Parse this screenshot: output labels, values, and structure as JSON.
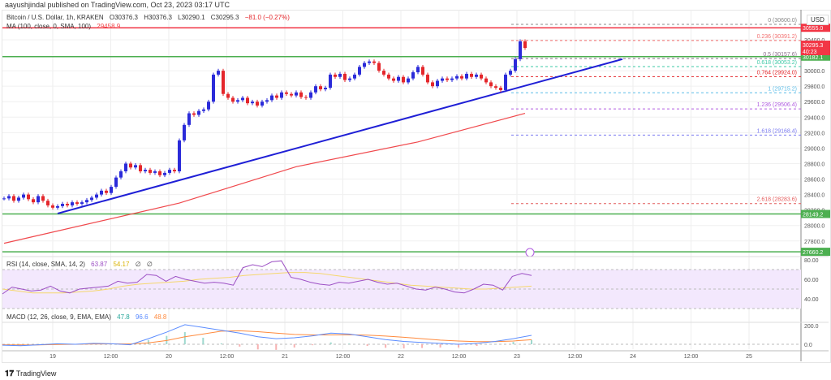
{
  "header": {
    "published": "aayushjindal published on TradingView.com, Oct 23, 2023 03:17 UTC"
  },
  "legend": {
    "symbol": "Bitcoin / U.S. Dollar, 1h, KRAKEN",
    "o": "O30376.3",
    "h": "H30376.3",
    "l": "L30290.1",
    "c": "C30295.3",
    "chg": "−81.0 (−0.27%)",
    "ma": "MA (100, close, 0, SMA, 100)",
    "ma_val": "29458.9"
  },
  "rsi_legend": {
    "label": "RSI (14, close, SMA, 14, 2)",
    "v1": "63.87",
    "v2": "54.17",
    "v3": "∅",
    "v4": "∅"
  },
  "macd_legend": {
    "label": "MACD (12, 26, close, 9, EMA, EMA)",
    "v1": "47.8",
    "v2": "96.6",
    "v3": "48.8"
  },
  "currency": "USD",
  "footer": {
    "brand": "TradingView"
  },
  "colors": {
    "up": "#2b2bd9",
    "down": "#e4262b",
    "ma": "#f0494d",
    "trend": "#1f1fd6",
    "support": "#4caf50",
    "resistance": "#f23645",
    "rsi": "#9c4fc4",
    "rsi_ma": "#f5d76e",
    "macd": "#5b8cff",
    "signal": "#ff8a3d"
  },
  "chart_data": [
    {
      "type": "candlestick",
      "title": "Bitcoin / U.S. Dollar, 1h, KRAKEN",
      "interval": "1h",
      "x_ticks": [
        "19",
        "12:00",
        "20",
        "12:00",
        "21",
        "12:00",
        "22",
        "12:00",
        "23",
        "12:00",
        "24",
        "12:00",
        "25"
      ],
      "y_ticks": [
        "30400.0",
        "30000.0",
        "29800.0",
        "29600.0",
        "29400.0",
        "29200.0",
        "29000.0",
        "28800.0",
        "28600.0",
        "28400.0",
        "28200.0",
        "28000.0",
        "27800.0"
      ],
      "ylim": [
        27600,
        30650
      ],
      "closes": [
        28350,
        28380,
        28320,
        28360,
        28400,
        28340,
        28300,
        28380,
        28320,
        28260,
        28230,
        28250,
        28280,
        28260,
        28300,
        28280,
        28300,
        28330,
        28360,
        28400,
        28450,
        28420,
        28500,
        28620,
        28700,
        28800,
        28750,
        28780,
        28700,
        28720,
        28680,
        28700,
        28650,
        28680,
        28720,
        28700,
        29100,
        29300,
        29450,
        29430,
        29480,
        29500,
        29600,
        29950,
        30000,
        29700,
        29650,
        29600,
        29620,
        29650,
        29580,
        29600,
        29550,
        29600,
        29620,
        29680,
        29650,
        29720,
        29700,
        29680,
        29720,
        29660,
        29650,
        29720,
        29800,
        29760,
        29780,
        29950,
        29920,
        29960,
        29880,
        29900,
        29950,
        30050,
        30100,
        30120,
        30100,
        30000,
        29950,
        29900,
        29870,
        29920,
        29850,
        29900,
        29980,
        30050,
        29950,
        29850,
        29800,
        29870,
        29900,
        29880,
        29900,
        29930,
        29900,
        29960,
        29920,
        29950,
        29900,
        29850,
        29800,
        29780,
        29750,
        29950,
        30000,
        30150,
        30380,
        30295
      ],
      "ma100": [
        [
          0,
          27770
        ],
        [
          36,
          28290
        ],
        [
          60,
          28760
        ],
        [
          85,
          29080
        ],
        [
          107,
          29450
        ]
      ],
      "trendline": [
        [
          11,
          28155
        ],
        [
          127,
          30150
        ]
      ],
      "horizontal_levels": [
        {
          "price": 30555,
          "color": "red",
          "label": "30555.0"
        },
        {
          "price": 30182.1,
          "label": "30182.1"
        },
        {
          "price": 28149.2,
          "label": "28149.2"
        },
        {
          "price": 27660.2,
          "label": "27660.2"
        }
      ],
      "last_price": {
        "label": "30295.3",
        "countdown": "40:23"
      },
      "fib": [
        {
          "label": "0 (30600.0)",
          "price": 30600,
          "color": "#888"
        },
        {
          "label": "0.236 (30391.2)",
          "price": 30391.2,
          "color": "#f26d6d"
        },
        {
          "label": "0.5 (30157.6)",
          "price": 30157.6,
          "color": "#8a6d8a"
        },
        {
          "label": "0.618 (30053.2)",
          "price": 30053.2,
          "color": "#3cc9a6"
        },
        {
          "label": "0.764 (29924.0)",
          "price": 29924,
          "color": "#e4262b"
        },
        {
          "label": "1 (29715.2)",
          "price": 29715.2,
          "color": "#5bbde8"
        },
        {
          "label": "1.236 (29506.4)",
          "price": 29506.4,
          "color": "#b05ce0"
        },
        {
          "label": "1.618 (29168.4)",
          "price": 29168.4,
          "color": "#7b7bf0"
        },
        {
          "label": "2.618 (28283.6)",
          "price": 28283.6,
          "color": "#e45b5b"
        }
      ]
    },
    {
      "type": "line",
      "name": "RSI",
      "y_ticks": [
        "80.00",
        "60.00",
        "40.00"
      ],
      "ylim": [
        25,
        82
      ],
      "rsi": [
        45,
        52,
        50,
        48,
        49,
        53,
        48,
        46,
        50,
        51,
        52,
        53,
        58,
        56,
        57,
        65,
        64,
        58,
        63,
        60,
        58,
        56,
        57,
        56,
        54,
        72,
        75,
        73,
        78,
        79,
        62,
        60,
        57,
        55,
        54,
        57,
        56,
        58,
        60,
        57,
        55,
        56,
        53,
        50,
        49,
        52,
        50,
        47,
        46,
        50,
        55,
        54,
        49,
        63,
        66,
        64
      ],
      "rsi_ma": [
        50,
        48,
        46,
        46,
        46,
        47,
        48,
        50,
        53,
        55,
        56,
        57,
        58,
        60,
        61,
        62,
        64,
        65,
        66,
        67,
        67,
        66,
        64,
        62,
        60,
        58,
        56,
        54,
        53,
        52,
        51,
        50,
        50,
        51,
        52,
        53
      ]
    },
    {
      "type": "line",
      "name": "MACD",
      "y_ticks": [
        "200.0",
        "0.0"
      ],
      "ylim": [
        -40,
        230
      ],
      "macd": [
        -10,
        -15,
        -5,
        5,
        0,
        10,
        5,
        -5,
        60,
        130,
        210,
        180,
        150,
        120,
        80,
        60,
        70,
        90,
        120,
        110,
        80,
        50,
        30,
        20,
        10,
        0,
        10,
        30,
        60,
        96
      ],
      "signal": [
        -5,
        -8,
        -6,
        -2,
        0,
        3,
        4,
        3,
        15,
        40,
        80,
        110,
        140,
        145,
        135,
        120,
        105,
        100,
        100,
        102,
        98,
        88,
        75,
        60,
        45,
        35,
        28,
        28,
        35,
        49
      ],
      "histogram_note": ""
    }
  ]
}
